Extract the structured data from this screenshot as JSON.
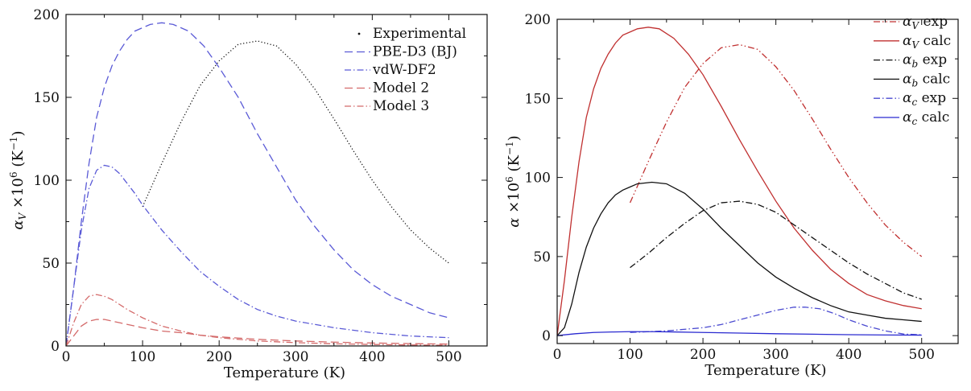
{
  "chart_data": [
    {
      "type": "line",
      "xlabel": "Temperature (K)",
      "ylabel_var": "α",
      "ylabel_sub": "V",
      "ylabel_mult": " ×10",
      "ylabel_exp": "6",
      "ylabel_unit_pre": " (K",
      "ylabel_unit_exp": "−1",
      "ylabel_unit_post": ")",
      "xlim": [
        0,
        550
      ],
      "ylim": [
        0,
        200
      ],
      "xticks": [
        0,
        100,
        200,
        300,
        400,
        500
      ],
      "yticks": [
        0,
        50,
        100,
        150,
        200
      ],
      "legend_position": "top-right",
      "series": [
        {
          "name": "Experimental",
          "color": "#111111",
          "style": "dotted",
          "x": [
            100,
            125,
            150,
            175,
            200,
            225,
            250,
            275,
            300,
            325,
            350,
            375,
            400,
            425,
            450,
            475,
            500
          ],
          "y": [
            84,
            110,
            135,
            157,
            172,
            182,
            184,
            181,
            170,
            155,
            137,
            118,
            100,
            84,
            70,
            59,
            50
          ]
        },
        {
          "name": "PBE-D3 (BJ)",
          "color": "#5a5ad6",
          "style": "dashed",
          "x": [
            0,
            10,
            20,
            30,
            40,
            50,
            60,
            70,
            80,
            90,
            100,
            110,
            125,
            140,
            160,
            180,
            200,
            225,
            250,
            275,
            300,
            325,
            350,
            375,
            400,
            425,
            450,
            475,
            500
          ],
          "y": [
            0,
            35,
            75,
            110,
            138,
            156,
            169,
            178,
            185,
            190,
            192,
            194,
            195,
            194,
            190,
            181,
            168,
            150,
            128,
            108,
            88,
            72,
            58,
            46,
            37,
            30,
            25,
            20,
            17
          ]
        },
        {
          "name": "vdW-DF2",
          "color": "#5a5ad6",
          "style": "dashdot",
          "x": [
            0,
            10,
            20,
            30,
            40,
            50,
            60,
            70,
            80,
            90,
            100,
            125,
            150,
            175,
            200,
            225,
            250,
            275,
            300,
            350,
            400,
            450,
            500
          ],
          "y": [
            0,
            35,
            70,
            95,
            106,
            109,
            108,
            104,
            98,
            92,
            85,
            70,
            57,
            45,
            36,
            28,
            22,
            18,
            15,
            11,
            8,
            6,
            5
          ]
        },
        {
          "name": "Model 2",
          "color": "#d46a6a",
          "style": "dashed",
          "x": [
            0,
            10,
            20,
            30,
            40,
            50,
            60,
            70,
            80,
            100,
            125,
            150,
            175,
            200,
            250,
            300,
            350,
            400,
            450,
            500
          ],
          "y": [
            0,
            6,
            12,
            15,
            16,
            16,
            15,
            14,
            13,
            11,
            9,
            8,
            6.5,
            5.5,
            4,
            3,
            2.3,
            1.8,
            1.4,
            1.1
          ]
        },
        {
          "name": "Model 3",
          "color": "#d46a6a",
          "style": "dashdot",
          "x": [
            0,
            10,
            20,
            30,
            40,
            50,
            60,
            70,
            80,
            100,
            125,
            150,
            175,
            200,
            250,
            300,
            350,
            400,
            450,
            500
          ],
          "y": [
            0,
            14,
            25,
            30,
            31,
            30,
            28,
            25,
            22,
            17,
            12,
            9,
            6.5,
            5,
            3,
            2,
            1.3,
            0.9,
            0.6,
            0.4
          ]
        }
      ]
    },
    {
      "type": "line",
      "xlabel": "Temperature (K)",
      "ylabel_var": "α",
      "ylabel_sub": "",
      "ylabel_mult": " ×10",
      "ylabel_exp": "6",
      "ylabel_unit_pre": " (K",
      "ylabel_unit_exp": "−1",
      "ylabel_unit_post": ")",
      "xlim": [
        0,
        550
      ],
      "ylim": [
        -5,
        200
      ],
      "xticks": [
        0,
        100,
        200,
        300,
        400,
        500
      ],
      "yticks": [
        0,
        50,
        100,
        150,
        200
      ],
      "legend_position": "top-right",
      "series": [
        {
          "name": "αV exp",
          "sym": "α",
          "sub": "V",
          "suffix": " exp",
          "color": "#c03030",
          "style": "dashdotdot",
          "x": [
            100,
            125,
            150,
            175,
            200,
            225,
            250,
            275,
            300,
            325,
            350,
            375,
            400,
            425,
            450,
            475,
            500
          ],
          "y": [
            84,
            110,
            135,
            157,
            172,
            182,
            184,
            181,
            170,
            155,
            137,
            118,
            100,
            84,
            70,
            59,
            50
          ]
        },
        {
          "name": "αV calc",
          "sym": "α",
          "sub": "V",
          "suffix": " calc",
          "color": "#c03030",
          "style": "solid",
          "x": [
            0,
            10,
            20,
            30,
            40,
            50,
            60,
            70,
            80,
            90,
            100,
            110,
            125,
            140,
            160,
            180,
            200,
            225,
            250,
            275,
            300,
            325,
            350,
            375,
            400,
            425,
            450,
            475,
            500
          ],
          "y": [
            0,
            35,
            75,
            110,
            138,
            156,
            169,
            178,
            185,
            190,
            192,
            194,
            195,
            194,
            188,
            178,
            165,
            145,
            124,
            104,
            85,
            68,
            54,
            42,
            33,
            26,
            22,
            19,
            17
          ]
        },
        {
          "name": "αb exp",
          "sym": "α",
          "sub": "b",
          "suffix": " exp",
          "color": "#111111",
          "style": "dashdot",
          "x": [
            100,
            125,
            150,
            175,
            200,
            225,
            250,
            275,
            300,
            325,
            350,
            375,
            400,
            425,
            450,
            475,
            500
          ],
          "y": [
            43,
            52,
            62,
            71,
            79,
            84,
            85,
            83,
            78,
            70,
            62,
            54,
            46,
            39,
            33,
            27,
            23
          ]
        },
        {
          "name": "αb calc",
          "sym": "α",
          "sub": "b",
          "suffix": " calc",
          "color": "#111111",
          "style": "solid",
          "x": [
            0,
            10,
            20,
            30,
            40,
            50,
            60,
            70,
            80,
            90,
            100,
            110,
            130,
            150,
            175,
            200,
            225,
            250,
            275,
            300,
            325,
            350,
            375,
            400,
            425,
            450,
            475,
            500
          ],
          "y": [
            0,
            5,
            20,
            40,
            56,
            68,
            77,
            84,
            89,
            92,
            94,
            96,
            97,
            96,
            90,
            80,
            68,
            57,
            46,
            37,
            30,
            24,
            19,
            15,
            13,
            11,
            10,
            9
          ]
        },
        {
          "name": "αc exp",
          "sym": "α",
          "sub": "c",
          "suffix": " exp",
          "color": "#4a4ad0",
          "style": "dashdot",
          "x": [
            100,
            150,
            200,
            225,
            250,
            275,
            300,
            325,
            340,
            360,
            380,
            400,
            425,
            450,
            475,
            500
          ],
          "y": [
            2,
            3,
            5,
            7,
            10,
            13,
            16,
            18,
            18,
            17,
            14,
            10,
            6,
            3,
            1,
            0.5
          ]
        },
        {
          "name": "αc calc",
          "sym": "α",
          "sub": "c",
          "suffix": " calc",
          "color": "#2a2ad0",
          "style": "solid",
          "x": [
            0,
            10,
            25,
            50,
            75,
            100,
            130,
            150,
            200,
            250,
            300,
            350,
            400,
            450,
            500
          ],
          "y": [
            0,
            0.5,
            1.2,
            2,
            2.3,
            2.5,
            2.5,
            2.4,
            2,
            1.6,
            1.2,
            0.9,
            0.6,
            0.4,
            0.3
          ]
        }
      ]
    }
  ]
}
